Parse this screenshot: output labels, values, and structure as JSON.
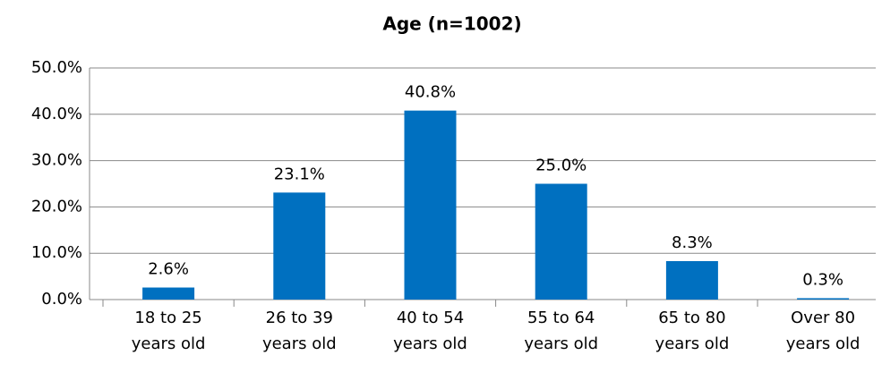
{
  "chart_data": {
    "type": "bar",
    "title": "Age (n=1002)",
    "categories": [
      "18 to 25 years old",
      "26 to 39 years old",
      "40 to 54 years old",
      "55 to 64 years old",
      "65 to 80 years old",
      "Over 80 years old"
    ],
    "values": [
      2.6,
      23.1,
      40.8,
      25.0,
      8.3,
      0.3
    ],
    "value_labels": [
      "2.6%",
      "23.1%",
      "40.8%",
      "25.0%",
      "8.3%",
      "0.3%"
    ],
    "color": "#0070c0",
    "ylim": [
      0,
      50
    ],
    "yticks": [
      {
        "value": 0,
        "label": "0.0%"
      },
      {
        "value": 10,
        "label": "10.0%"
      },
      {
        "value": 20,
        "label": "20.0%"
      },
      {
        "value": 30,
        "label": "30.0%"
      },
      {
        "value": 40,
        "label": "40.0%"
      },
      {
        "value": 50,
        "label": "50.0%"
      }
    ],
    "grid": true
  }
}
